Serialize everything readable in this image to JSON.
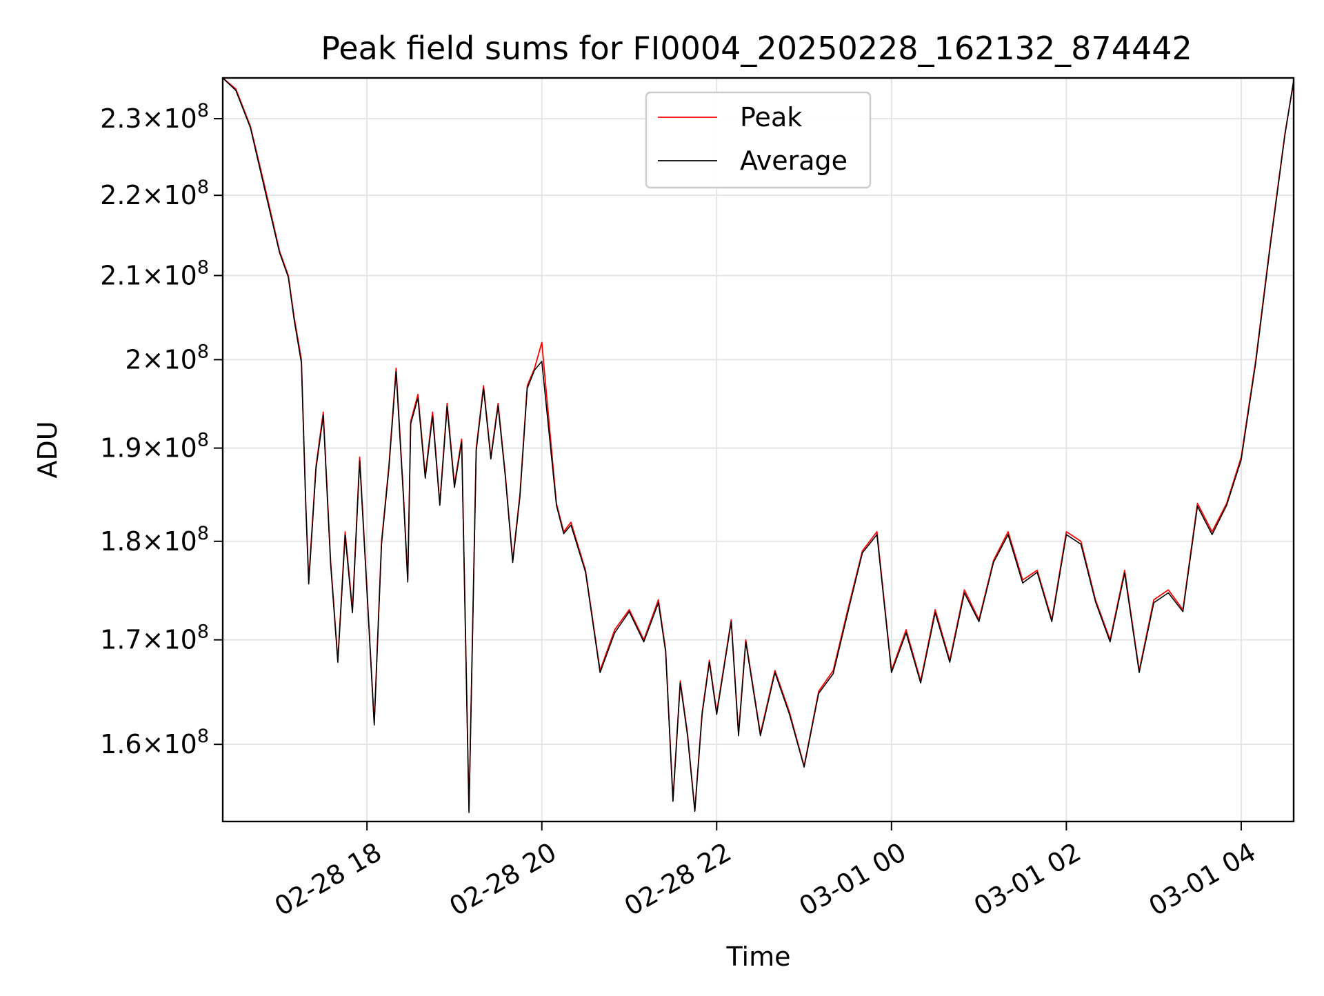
{
  "chart_data": {
    "type": "line",
    "title": "Peak field sums for FI0004_20250228_162132_874442",
    "xlabel": "Time",
    "ylabel": "ADU",
    "y_scale": "log",
    "ylim": [
      153000000,
      235500000
    ],
    "xlim": [
      "2025-02-28 16:21",
      "2025-03-01 04:36"
    ],
    "grid": true,
    "legend_position": "top-center",
    "x_ticks": [
      {
        "time": "2025-02-28 18:00",
        "label": "02-28 18"
      },
      {
        "time": "2025-02-28 20:00",
        "label": "02-28 20"
      },
      {
        "time": "2025-02-28 22:00",
        "label": "02-28 22"
      },
      {
        "time": "2025-03-01 00:00",
        "label": "03-01 00"
      },
      {
        "time": "2025-03-01 02:00",
        "label": "03-01 02"
      },
      {
        "time": "2025-03-01 04:00",
        "label": "03-01 04"
      }
    ],
    "y_ticks": [
      {
        "value": 160000000,
        "mantissa": "1.6",
        "base": "10",
        "exponent": "8"
      },
      {
        "value": 170000000,
        "mantissa": "1.7",
        "base": "10",
        "exponent": "8"
      },
      {
        "value": 180000000,
        "mantissa": "1.8",
        "base": "10",
        "exponent": "8"
      },
      {
        "value": 190000000,
        "mantissa": "1.9",
        "base": "10",
        "exponent": "8"
      },
      {
        "value": 200000000,
        "mantissa": "2",
        "base": "10",
        "exponent": "8"
      },
      {
        "value": 210000000,
        "mantissa": "2.1",
        "base": "10",
        "exponent": "8"
      },
      {
        "value": 220000000,
        "mantissa": "2.2",
        "base": "10",
        "exponent": "8"
      },
      {
        "value": 230000000,
        "mantissa": "2.3",
        "base": "10",
        "exponent": "8"
      }
    ],
    "times_comment_removed": true,
    "x": [
      "2025-02-28 16:21",
      "2025-02-28 16:30",
      "2025-02-28 16:40",
      "2025-02-28 16:50",
      "2025-02-28 17:00",
      "2025-02-28 17:06",
      "2025-02-28 17:10",
      "2025-02-28 17:15",
      "2025-02-28 17:18",
      "2025-02-28 17:20",
      "2025-02-28 17:25",
      "2025-02-28 17:30",
      "2025-02-28 17:35",
      "2025-02-28 17:40",
      "2025-02-28 17:45",
      "2025-02-28 17:50",
      "2025-02-28 17:55",
      "2025-02-28 18:00",
      "2025-02-28 18:05",
      "2025-02-28 18:10",
      "2025-02-28 18:15",
      "2025-02-28 18:20",
      "2025-02-28 18:25",
      "2025-02-28 18:28",
      "2025-02-28 18:30",
      "2025-02-28 18:35",
      "2025-02-28 18:40",
      "2025-02-28 18:45",
      "2025-02-28 18:50",
      "2025-02-28 18:55",
      "2025-02-28 19:00",
      "2025-02-28 19:05",
      "2025-02-28 19:10",
      "2025-02-28 19:15",
      "2025-02-28 19:20",
      "2025-02-28 19:25",
      "2025-02-28 19:30",
      "2025-02-28 19:35",
      "2025-02-28 19:40",
      "2025-02-28 19:45",
      "2025-02-28 19:50",
      "2025-02-28 19:55",
      "2025-02-28 20:00",
      "2025-02-28 20:10",
      "2025-02-28 20:15",
      "2025-02-28 20:20",
      "2025-02-28 20:30",
      "2025-02-28 20:40",
      "2025-02-28 20:50",
      "2025-02-28 21:00",
      "2025-02-28 21:10",
      "2025-02-28 21:20",
      "2025-02-28 21:25",
      "2025-02-28 21:30",
      "2025-02-28 21:35",
      "2025-02-28 21:40",
      "2025-02-28 21:45",
      "2025-02-28 21:50",
      "2025-02-28 21:55",
      "2025-02-28 22:00",
      "2025-02-28 22:10",
      "2025-02-28 22:15",
      "2025-02-28 22:20",
      "2025-02-28 22:30",
      "2025-02-28 22:40",
      "2025-02-28 22:50",
      "2025-02-28 23:00",
      "2025-02-28 23:10",
      "2025-02-28 23:20",
      "2025-02-28 23:30",
      "2025-02-28 23:40",
      "2025-02-28 23:50",
      "2025-03-01 00:00",
      "2025-03-01 00:10",
      "2025-03-01 00:20",
      "2025-03-01 00:30",
      "2025-03-01 00:40",
      "2025-03-01 00:50",
      "2025-03-01 01:00",
      "2025-03-01 01:10",
      "2025-03-01 01:20",
      "2025-03-01 01:30",
      "2025-03-01 01:40",
      "2025-03-01 01:50",
      "2025-03-01 02:00",
      "2025-03-01 02:10",
      "2025-03-01 02:20",
      "2025-03-01 02:30",
      "2025-03-01 02:40",
      "2025-03-01 02:50",
      "2025-03-01 03:00",
      "2025-03-01 03:10",
      "2025-03-01 03:20",
      "2025-03-01 03:30",
      "2025-03-01 03:40",
      "2025-03-01 03:50",
      "2025-03-01 04:00",
      "2025-03-01 04:10",
      "2025-03-01 04:20",
      "2025-03-01 04:30",
      "2025-03-01 04:36"
    ],
    "series": [
      {
        "name": "Peak",
        "color": "#ff0000",
        "values": [
          235500000,
          234000000,
          229000000,
          221000000,
          213000000,
          210000000,
          205000000,
          200000000,
          184000000,
          176000000,
          188000000,
          194000000,
          178000000,
          168000000,
          181000000,
          173000000,
          189000000,
          175000000,
          162000000,
          180000000,
          188000000,
          199000000,
          185000000,
          176000000,
          193000000,
          196000000,
          187000000,
          194000000,
          184000000,
          195000000,
          186000000,
          191000000,
          154000000,
          190000000,
          197000000,
          189000000,
          195000000,
          187000000,
          178000000,
          185000000,
          197000000,
          199000000,
          202000000,
          184000000,
          181000000,
          182000000,
          177000000,
          167000000,
          171000000,
          173000000,
          170000000,
          174000000,
          169000000,
          155000000,
          166000000,
          161000000,
          154000000,
          163000000,
          168000000,
          163000000,
          172000000,
          161000000,
          170000000,
          161000000,
          167000000,
          163000000,
          158000000,
          165000000,
          167000000,
          173000000,
          179000000,
          181000000,
          167000000,
          171000000,
          166000000,
          173000000,
          168000000,
          175000000,
          172000000,
          178000000,
          181000000,
          176000000,
          177000000,
          172000000,
          181000000,
          180000000,
          174000000,
          170000000,
          177000000,
          167000000,
          174000000,
          175000000,
          173000000,
          184000000,
          181000000,
          184000000,
          189000000,
          200000000,
          214000000,
          228000000,
          235000000
        ]
      },
      {
        "name": "Average",
        "color": "#000000",
        "values": [
          235500000,
          233800000,
          228800000,
          220600000,
          212800000,
          209800000,
          204700000,
          199600000,
          183800000,
          175600000,
          187700000,
          193600000,
          177700000,
          167800000,
          180600000,
          172700000,
          188600000,
          174800000,
          161800000,
          179700000,
          187700000,
          198600000,
          184700000,
          175800000,
          192700000,
          195600000,
          186700000,
          193600000,
          183800000,
          194600000,
          185700000,
          190700000,
          153800000,
          189700000,
          196700000,
          188800000,
          194700000,
          186800000,
          177800000,
          184700000,
          196700000,
          198800000,
          199800000,
          183800000,
          180800000,
          181700000,
          176800000,
          166800000,
          170700000,
          172800000,
          169800000,
          173700000,
          168800000,
          154800000,
          165800000,
          160800000,
          153900000,
          162800000,
          167800000,
          162800000,
          171800000,
          160800000,
          169800000,
          160800000,
          166800000,
          162800000,
          157900000,
          164800000,
          166700000,
          172700000,
          178800000,
          180700000,
          166800000,
          170700000,
          165800000,
          172700000,
          167800000,
          174700000,
          171800000,
          177800000,
          180700000,
          175700000,
          176800000,
          171800000,
          180700000,
          179700000,
          173800000,
          169800000,
          176700000,
          166800000,
          173700000,
          174700000,
          172800000,
          183700000,
          180700000,
          183800000,
          188700000,
          199700000,
          213700000,
          227800000,
          235200000
        ]
      }
    ]
  }
}
